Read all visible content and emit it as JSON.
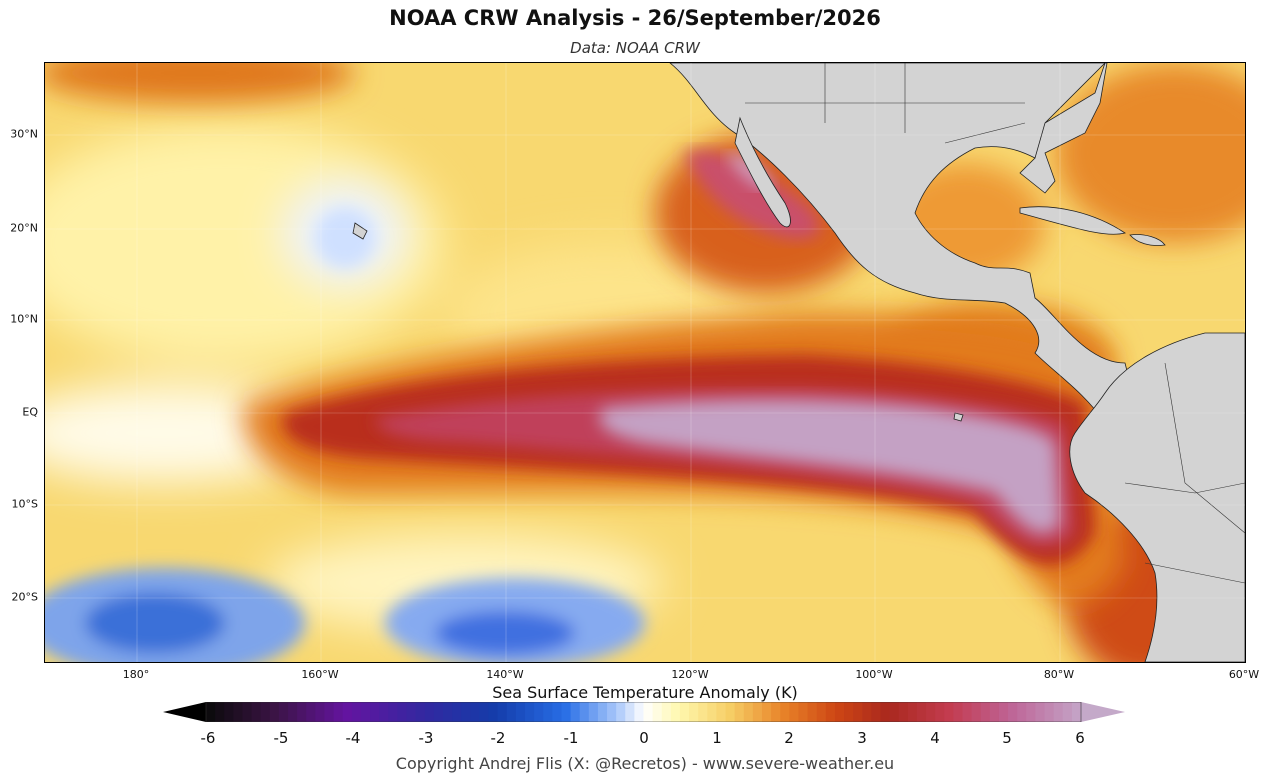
{
  "title": "NOAA CRW Analysis - 26/September/2026",
  "subtitle": "Data: NOAA CRW",
  "map": {
    "latitude_labels": [
      "30°N",
      "20°N",
      "10°N",
      "EQ",
      "10°S",
      "20°S"
    ],
    "longitude_labels": [
      "180°",
      "160°W",
      "140°W",
      "120°W",
      "100°W",
      "80°W",
      "60°W"
    ],
    "colors": {
      "land": "#d3d3d3",
      "coastline": "#222222",
      "warm_anomaly": "#c23a3f",
      "strong_warm_anomaly": "#c4a1c4",
      "cool_anomaly": "#3a6fd8",
      "neutral": "#fff7b0"
    }
  },
  "colorbar": {
    "title": "Sea Surface Temperature Anomaly (K)",
    "tick_labels": [
      "-6",
      "-5",
      "-4",
      "-3",
      "-2",
      "-1",
      "0",
      "1",
      "2",
      "3",
      "4",
      "5",
      "6"
    ],
    "range": [
      -6,
      6
    ],
    "extend": "both"
  },
  "copyright": "Copyright Andrej Flis (X: @Recretos) - www.severe-weather.eu"
}
